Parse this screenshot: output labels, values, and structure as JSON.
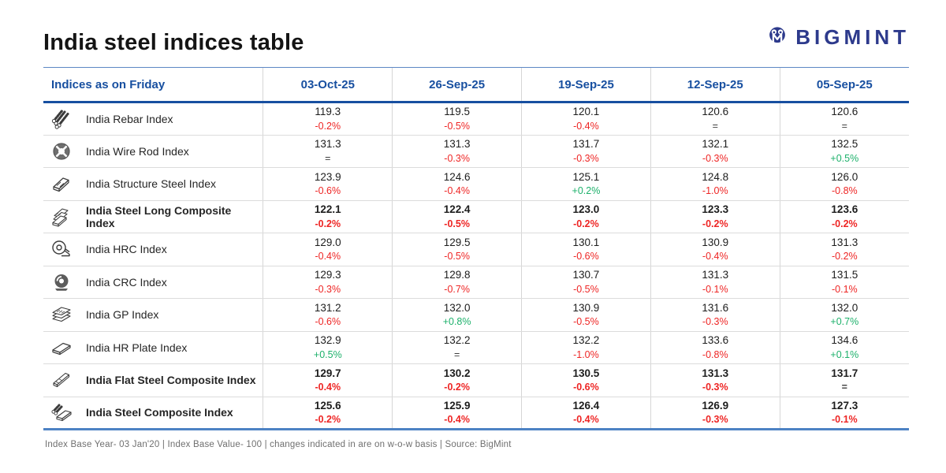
{
  "page": {
    "logo_text": "BIGMINT"
  },
  "colors": {
    "header_blue": "#174fa0",
    "logo_navy": "#2d3a8c",
    "negative_red": "#ee2524",
    "positive_green": "#1db16b",
    "flat_gray": "#3f3f3f"
  },
  "chart_data": {
    "type": "table",
    "title": "India steel indices table",
    "header_label": "Indices as on Friday",
    "columns": [
      "03-Oct-25",
      "26-Sep-25",
      "19-Sep-25",
      "12-Sep-25",
      "05-Sep-25"
    ],
    "rows": [
      {
        "icon": "rebar-icon",
        "label": "India Rebar Index",
        "bold": false,
        "cells": [
          [
            "119.3",
            "-0.2%"
          ],
          [
            "119.5",
            "-0.5%"
          ],
          [
            "120.1",
            "-0.4%"
          ],
          [
            "120.6",
            "="
          ],
          [
            "120.6",
            "="
          ]
        ]
      },
      {
        "icon": "wire-rod-icon",
        "label": "India Wire Rod Index",
        "bold": false,
        "cells": [
          [
            "131.3",
            "="
          ],
          [
            "131.3",
            "-0.3%"
          ],
          [
            "131.7",
            "-0.3%"
          ],
          [
            "132.1",
            "-0.3%"
          ],
          [
            "132.5",
            "+0.5%"
          ]
        ]
      },
      {
        "icon": "structure-steel-icon",
        "label": "India Structure Steel Index",
        "bold": false,
        "cells": [
          [
            "123.9",
            "-0.6%"
          ],
          [
            "124.6",
            "-0.4%"
          ],
          [
            "125.1",
            "+0.2%"
          ],
          [
            "124.8",
            "-1.0%"
          ],
          [
            "126.0",
            "-0.8%"
          ]
        ]
      },
      {
        "icon": "steel-long-composite-icon",
        "label": "India Steel Long Composite Index",
        "bold": true,
        "cells": [
          [
            "122.1",
            "-0.2%"
          ],
          [
            "122.4",
            "-0.5%"
          ],
          [
            "123.0",
            "-0.2%"
          ],
          [
            "123.3",
            "-0.2%"
          ],
          [
            "123.6",
            "-0.2%"
          ]
        ]
      },
      {
        "icon": "hrc-coil-icon",
        "label": "India HRC Index",
        "bold": false,
        "cells": [
          [
            "129.0",
            "-0.4%"
          ],
          [
            "129.5",
            "-0.5%"
          ],
          [
            "130.1",
            "-0.6%"
          ],
          [
            "130.9",
            "-0.4%"
          ],
          [
            "131.3",
            "-0.2%"
          ]
        ]
      },
      {
        "icon": "crc-coil-icon",
        "label": "India CRC Index",
        "bold": false,
        "cells": [
          [
            "129.3",
            "-0.3%"
          ],
          [
            "129.8",
            "-0.7%"
          ],
          [
            "130.7",
            "-0.5%"
          ],
          [
            "131.3",
            "-0.1%"
          ],
          [
            "131.5",
            "-0.1%"
          ]
        ]
      },
      {
        "icon": "gp-sheets-icon",
        "label": "India GP Index",
        "bold": false,
        "cells": [
          [
            "131.2",
            "-0.6%"
          ],
          [
            "132.0",
            "+0.8%"
          ],
          [
            "130.9",
            "-0.5%"
          ],
          [
            "131.6",
            "-0.3%"
          ],
          [
            "132.0",
            "+0.7%"
          ]
        ]
      },
      {
        "icon": "hr-plate-icon",
        "label": "India HR Plate Index",
        "bold": false,
        "cells": [
          [
            "132.9",
            "+0.5%"
          ],
          [
            "132.2",
            "="
          ],
          [
            "132.2",
            "-1.0%"
          ],
          [
            "133.6",
            "-0.8%"
          ],
          [
            "134.6",
            "+0.1%"
          ]
        ]
      },
      {
        "icon": "flat-steel-composite-icon",
        "label": "India Flat Steel Composite Index",
        "bold": true,
        "cells": [
          [
            "129.7",
            "-0.4%"
          ],
          [
            "130.2",
            "-0.2%"
          ],
          [
            "130.5",
            "-0.6%"
          ],
          [
            "131.3",
            "-0.3%"
          ],
          [
            "131.7",
            "="
          ]
        ]
      },
      {
        "icon": "steel-composite-icon",
        "label": "India Steel Composite Index",
        "bold": true,
        "cells": [
          [
            "125.6",
            "-0.2%"
          ],
          [
            "125.9",
            "-0.4%"
          ],
          [
            "126.4",
            "-0.4%"
          ],
          [
            "126.9",
            "-0.3%"
          ],
          [
            "127.3",
            "-0.1%"
          ]
        ]
      }
    ],
    "footnote": "Index Base Year- 03 Jan'20 | Index Base Value- 100 | changes indicated in are on w-o-w basis | Source: BigMint"
  }
}
